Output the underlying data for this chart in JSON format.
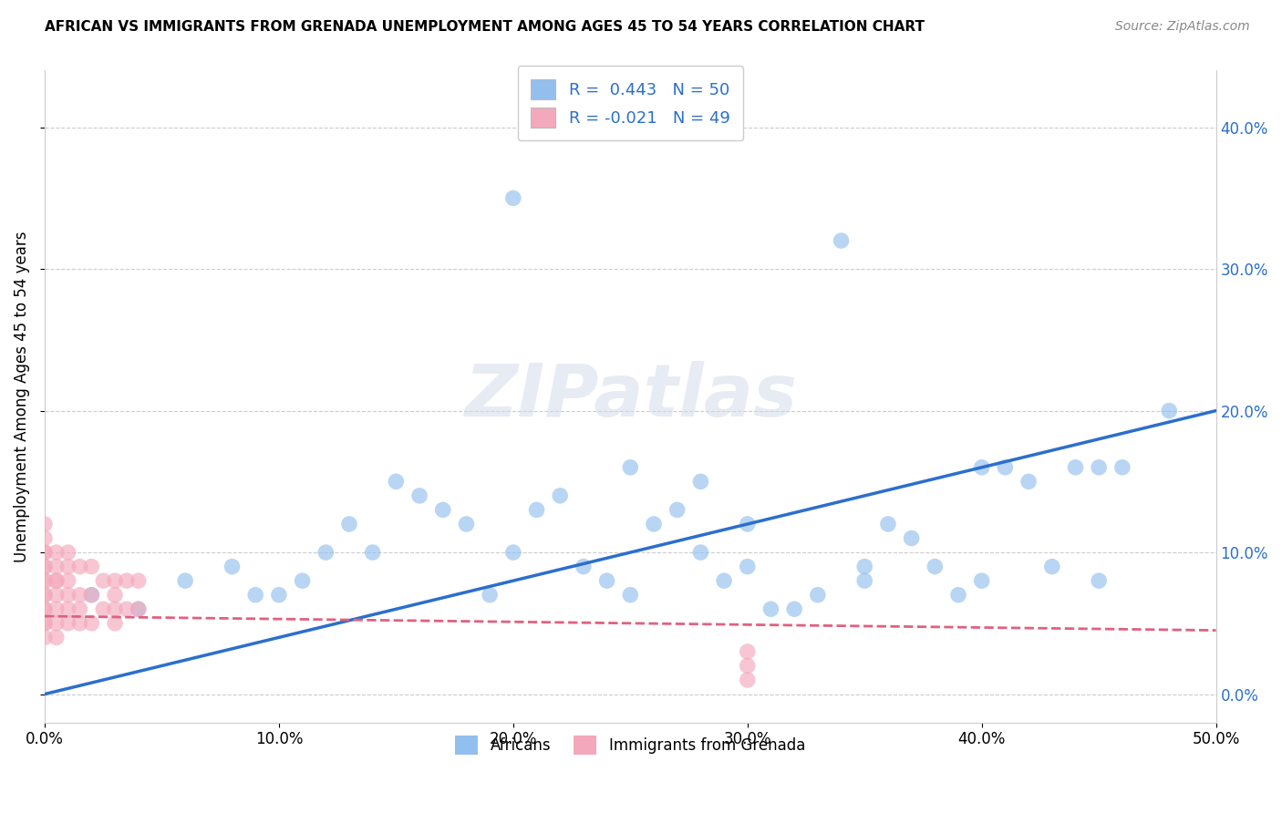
{
  "title": "AFRICAN VS IMMIGRANTS FROM GRENADA UNEMPLOYMENT AMONG AGES 45 TO 54 YEARS CORRELATION CHART",
  "source": "Source: ZipAtlas.com",
  "ylabel": "Unemployment Among Ages 45 to 54 years",
  "xlim": [
    0.0,
    0.5
  ],
  "ylim": [
    -0.02,
    0.44
  ],
  "xticks": [
    0.0,
    0.1,
    0.2,
    0.3,
    0.4,
    0.5
  ],
  "xtick_labels": [
    "0.0%",
    "10.0%",
    "20.0%",
    "30.0%",
    "40.0%",
    "50.0%"
  ],
  "yticks": [
    0.0,
    0.1,
    0.2,
    0.3,
    0.4
  ],
  "ytick_labels": [
    "0.0%",
    "10.0%",
    "20.0%",
    "30.0%",
    "40.0%"
  ],
  "r_african": 0.443,
  "n_african": 50,
  "r_grenada": -0.021,
  "n_grenada": 49,
  "african_color": "#92bfee",
  "grenada_color": "#f4a8bb",
  "african_line_color": "#2b6fcc",
  "grenada_line_color": "#e06080",
  "watermark": "ZIPatlas",
  "legend_label_african": "Africans",
  "legend_label_grenada": "Immigrants from Grenada",
  "africans_x": [
    0.02,
    0.04,
    0.06,
    0.08,
    0.09,
    0.1,
    0.11,
    0.12,
    0.13,
    0.14,
    0.15,
    0.16,
    0.17,
    0.18,
    0.19,
    0.2,
    0.21,
    0.22,
    0.23,
    0.24,
    0.25,
    0.26,
    0.27,
    0.28,
    0.29,
    0.3,
    0.31,
    0.32,
    0.33,
    0.34,
    0.35,
    0.36,
    0.37,
    0.38,
    0.39,
    0.4,
    0.41,
    0.42,
    0.43,
    0.44,
    0.45,
    0.46,
    0.2,
    0.25,
    0.28,
    0.3,
    0.35,
    0.4,
    0.45,
    0.48
  ],
  "africans_y": [
    0.07,
    0.06,
    0.08,
    0.09,
    0.07,
    0.07,
    0.08,
    0.1,
    0.12,
    0.1,
    0.15,
    0.14,
    0.13,
    0.12,
    0.07,
    0.1,
    0.13,
    0.14,
    0.09,
    0.08,
    0.07,
    0.12,
    0.13,
    0.1,
    0.08,
    0.12,
    0.06,
    0.06,
    0.07,
    0.32,
    0.08,
    0.12,
    0.11,
    0.09,
    0.07,
    0.08,
    0.16,
    0.15,
    0.09,
    0.16,
    0.08,
    0.16,
    0.35,
    0.16,
    0.15,
    0.09,
    0.09,
    0.16,
    0.16,
    0.2
  ],
  "grenada_x": [
    0.0,
    0.0,
    0.0,
    0.0,
    0.0,
    0.0,
    0.0,
    0.0,
    0.0,
    0.0,
    0.0,
    0.0,
    0.0,
    0.0,
    0.0,
    0.005,
    0.005,
    0.005,
    0.005,
    0.005,
    0.005,
    0.005,
    0.005,
    0.01,
    0.01,
    0.01,
    0.01,
    0.01,
    0.01,
    0.015,
    0.015,
    0.015,
    0.015,
    0.02,
    0.02,
    0.02,
    0.025,
    0.025,
    0.03,
    0.03,
    0.03,
    0.03,
    0.035,
    0.035,
    0.04,
    0.04,
    0.3,
    0.3,
    0.3
  ],
  "grenada_y": [
    0.04,
    0.05,
    0.05,
    0.06,
    0.06,
    0.07,
    0.07,
    0.08,
    0.08,
    0.09,
    0.09,
    0.1,
    0.1,
    0.11,
    0.12,
    0.04,
    0.05,
    0.06,
    0.07,
    0.08,
    0.08,
    0.09,
    0.1,
    0.05,
    0.06,
    0.07,
    0.08,
    0.09,
    0.1,
    0.05,
    0.06,
    0.07,
    0.09,
    0.05,
    0.07,
    0.09,
    0.06,
    0.08,
    0.05,
    0.06,
    0.07,
    0.08,
    0.06,
    0.08,
    0.06,
    0.08,
    0.02,
    0.03,
    0.01
  ],
  "african_trendline": [
    0.0,
    0.2
  ],
  "grenada_trendline_y": [
    0.055,
    0.045
  ]
}
